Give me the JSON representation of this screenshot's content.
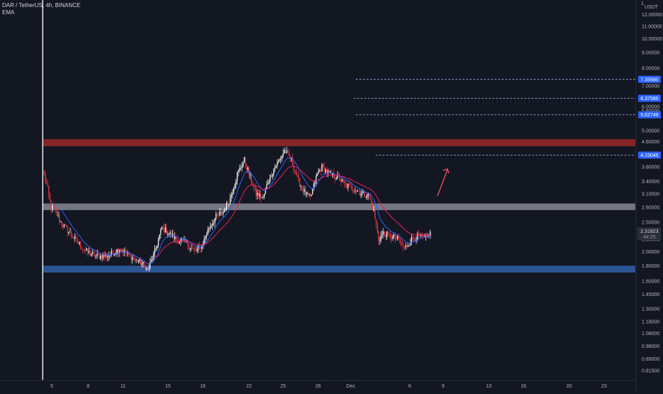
{
  "legend": {
    "symbol": "DAR / TetherUS, 4h, BINANCE",
    "indicator": "EMA"
  },
  "colors": {
    "background": "#131722",
    "up": "#ffffff",
    "down": "#f23645",
    "ema_fast": "#2962ff",
    "ema_slow": "#e91e63",
    "resistance_zone": "#8b2626",
    "support_zone": "#2e5a9c",
    "pivot_zone": "#9598a1",
    "tag_bg": "#2962ff",
    "arrow": "#f7525f"
  },
  "chart_data": {
    "type": "candlestick",
    "symbol": "DAR / TetherUS",
    "interval": "4h",
    "exchange": "BINANCE",
    "y_scale": "log",
    "y_unit": "USDT",
    "ylim": [
      0.76,
      13.4
    ],
    "x_tick_labels": [
      "5",
      "8",
      "11",
      "15",
      "18",
      "22",
      "25",
      "28",
      "Dec",
      "6",
      "9",
      "13",
      "16",
      "20",
      "23"
    ],
    "y_tick_labels": [
      "12.00000",
      "11.00000",
      "10.00000",
      "9.00000",
      "8.00000",
      "7.00000",
      "6.00000",
      "5.80000",
      "5.00000",
      "4.60000",
      "4.20000",
      "3.80000",
      "3.40000",
      "3.10000",
      "2.80000",
      "2.50000",
      "2.20000",
      "2.00000",
      "1.80000",
      "1.60000",
      "1.45000",
      "1.30000",
      "1.18000",
      "1.08000",
      "0.98000",
      "0.89000",
      "0.81500"
    ],
    "y_tick_values": [
      12.0,
      11.0,
      10.0,
      9.0,
      8.0,
      7.0,
      6.0,
      5.8,
      5.0,
      4.6,
      4.2,
      3.8,
      3.4,
      3.1,
      2.8,
      2.5,
      2.2,
      2.0,
      1.8,
      1.6,
      1.45,
      1.3,
      1.18,
      1.08,
      0.98,
      0.89,
      0.815
    ],
    "anchors": [
      [
        0,
        3.6
      ],
      [
        3,
        3.2
      ],
      [
        6,
        2.8
      ],
      [
        10,
        2.7
      ],
      [
        14,
        2.5
      ],
      [
        20,
        2.35
      ],
      [
        28,
        2.15
      ],
      [
        36,
        2.0
      ],
      [
        46,
        1.93
      ],
      [
        56,
        1.95
      ],
      [
        64,
        2.05
      ],
      [
        72,
        1.95
      ],
      [
        78,
        1.88
      ],
      [
        84,
        1.82
      ],
      [
        88,
        1.74
      ],
      [
        94,
        2.0
      ],
      [
        100,
        2.4
      ],
      [
        106,
        2.3
      ],
      [
        112,
        2.2
      ],
      [
        120,
        2.15
      ],
      [
        128,
        2.0
      ],
      [
        134,
        2.1
      ],
      [
        140,
        2.4
      ],
      [
        146,
        2.6
      ],
      [
        152,
        2.7
      ],
      [
        158,
        3.0
      ],
      [
        164,
        3.6
      ],
      [
        170,
        4.0
      ],
      [
        174,
        3.6
      ],
      [
        180,
        3.1
      ],
      [
        186,
        3.0
      ],
      [
        190,
        3.4
      ],
      [
        196,
        3.8
      ],
      [
        200,
        4.0
      ],
      [
        204,
        4.3
      ],
      [
        210,
        4.0
      ],
      [
        216,
        3.4
      ],
      [
        222,
        3.1
      ],
      [
        226,
        3.0
      ],
      [
        232,
        3.6
      ],
      [
        236,
        3.8
      ],
      [
        242,
        3.6
      ],
      [
        250,
        3.5
      ],
      [
        256,
        3.3
      ],
      [
        262,
        3.25
      ],
      [
        270,
        3.1
      ],
      [
        276,
        3.05
      ],
      [
        280,
        2.7
      ],
      [
        284,
        2.2
      ],
      [
        288,
        2.3
      ],
      [
        294,
        2.25
      ],
      [
        300,
        2.2
      ],
      [
        306,
        2.05
      ],
      [
        312,
        2.2
      ],
      [
        318,
        2.25
      ],
      [
        324,
        2.2
      ],
      [
        328,
        2.32
      ]
    ],
    "total_candles": 329,
    "last_price_label": "2.31823",
    "countdown_label": "44:25",
    "last_price": 2.31823,
    "zones": [
      {
        "name": "resistance",
        "low": 4.44,
        "high": 4.68
      },
      {
        "name": "pivot",
        "low": 2.74,
        "high": 2.88
      },
      {
        "name": "support",
        "low": 1.71,
        "high": 1.8
      }
    ],
    "targets": [
      {
        "value": 7.3568,
        "label": "7.35680"
      },
      {
        "value": 6.3758,
        "label": "6.37580"
      },
      {
        "value": 5.62749,
        "label": "5.62749"
      },
      {
        "value": 4.15045,
        "label": "4.15045"
      }
    ]
  }
}
